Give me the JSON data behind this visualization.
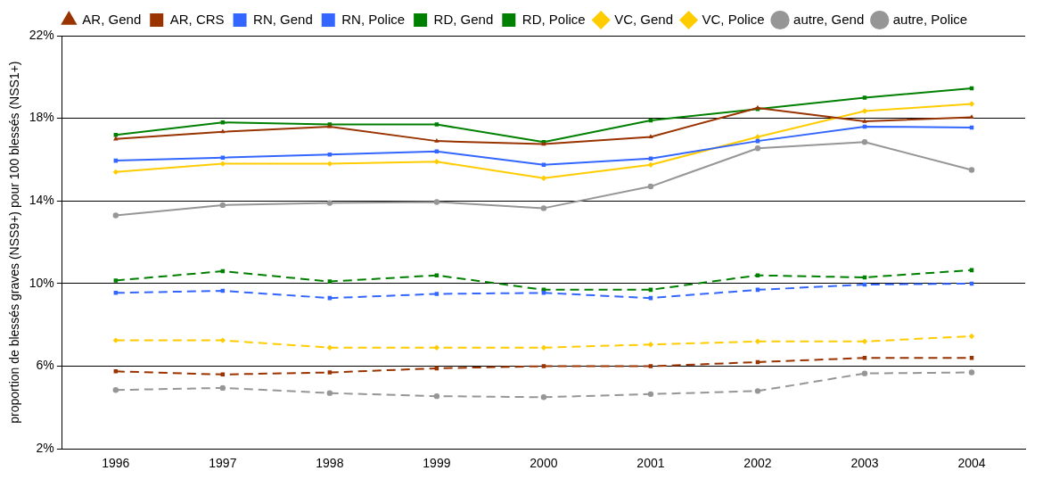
{
  "chart_data": {
    "type": "line",
    "ylabel": "proportion de blessés graves (NSS9+) pour 100 blessés (NSS1+)",
    "categories": [
      "1996",
      "1997",
      "1998",
      "1999",
      "2000",
      "2001",
      "2002",
      "2003",
      "2004"
    ],
    "ylim": [
      2,
      22
    ],
    "yticks": [
      {
        "value": 2,
        "label": "2%"
      },
      {
        "value": 6,
        "label": "6%"
      },
      {
        "value": 10,
        "label": "10%"
      },
      {
        "value": 14,
        "label": "14%"
      },
      {
        "value": 18,
        "label": "18%"
      },
      {
        "value": 22,
        "label": "22%"
      }
    ],
    "grid": "y",
    "legend": "top",
    "series": [
      {
        "name": "AR, Gend",
        "color": "#993300",
        "marker": "triangle",
        "line_style": "solid",
        "values": [
          17.0,
          17.35,
          17.6,
          16.9,
          16.75,
          17.1,
          18.5,
          17.85,
          18.05
        ]
      },
      {
        "name": "AR, CRS",
        "color": "#993300",
        "marker": "square",
        "line_style": "dashed",
        "values": [
          5.75,
          5.6,
          5.7,
          5.9,
          6.0,
          6.0,
          6.2,
          6.4,
          6.4
        ]
      },
      {
        "name": "RN, Gend",
        "color": "#3366ff",
        "marker": "square",
        "line_style": "solid",
        "values": [
          15.95,
          16.1,
          16.25,
          16.4,
          15.75,
          16.05,
          16.9,
          17.6,
          17.55
        ]
      },
      {
        "name": "RN, Police",
        "color": "#3366ff",
        "marker": "square",
        "line_style": "dashed",
        "values": [
          9.55,
          9.65,
          9.3,
          9.5,
          9.55,
          9.3,
          9.7,
          9.95,
          10.0
        ]
      },
      {
        "name": "RD, Gend",
        "color": "#008000",
        "marker": "square",
        "line_style": "solid",
        "values": [
          17.2,
          17.8,
          17.7,
          17.7,
          16.85,
          17.9,
          18.45,
          19.0,
          19.45
        ]
      },
      {
        "name": "RD, Police",
        "color": "#008000",
        "marker": "square",
        "line_style": "dashed",
        "values": [
          10.15,
          10.6,
          10.1,
          10.4,
          9.7,
          9.7,
          10.4,
          10.3,
          10.65
        ]
      },
      {
        "name": "VC, Gend",
        "color": "#ffcc00",
        "marker": "diamond",
        "line_style": "solid",
        "values": [
          15.4,
          15.8,
          15.8,
          15.9,
          15.1,
          15.75,
          17.1,
          18.35,
          18.7
        ]
      },
      {
        "name": "VC, Police",
        "color": "#ffcc00",
        "marker": "diamond",
        "line_style": "dashed",
        "values": [
          7.25,
          7.25,
          6.9,
          6.9,
          6.9,
          7.05,
          7.2,
          7.2,
          7.45
        ]
      },
      {
        "name": "autre, Gend",
        "color": "#969696",
        "marker": "circle",
        "line_style": "solid",
        "values": [
          13.3,
          13.8,
          13.9,
          13.95,
          13.65,
          14.7,
          16.55,
          16.85,
          15.5
        ]
      },
      {
        "name": "autre, Police",
        "color": "#969696",
        "marker": "circle",
        "line_style": "dashed",
        "values": [
          4.85,
          4.95,
          4.7,
          4.55,
          4.5,
          4.65,
          4.8,
          5.65,
          5.7
        ]
      }
    ]
  }
}
